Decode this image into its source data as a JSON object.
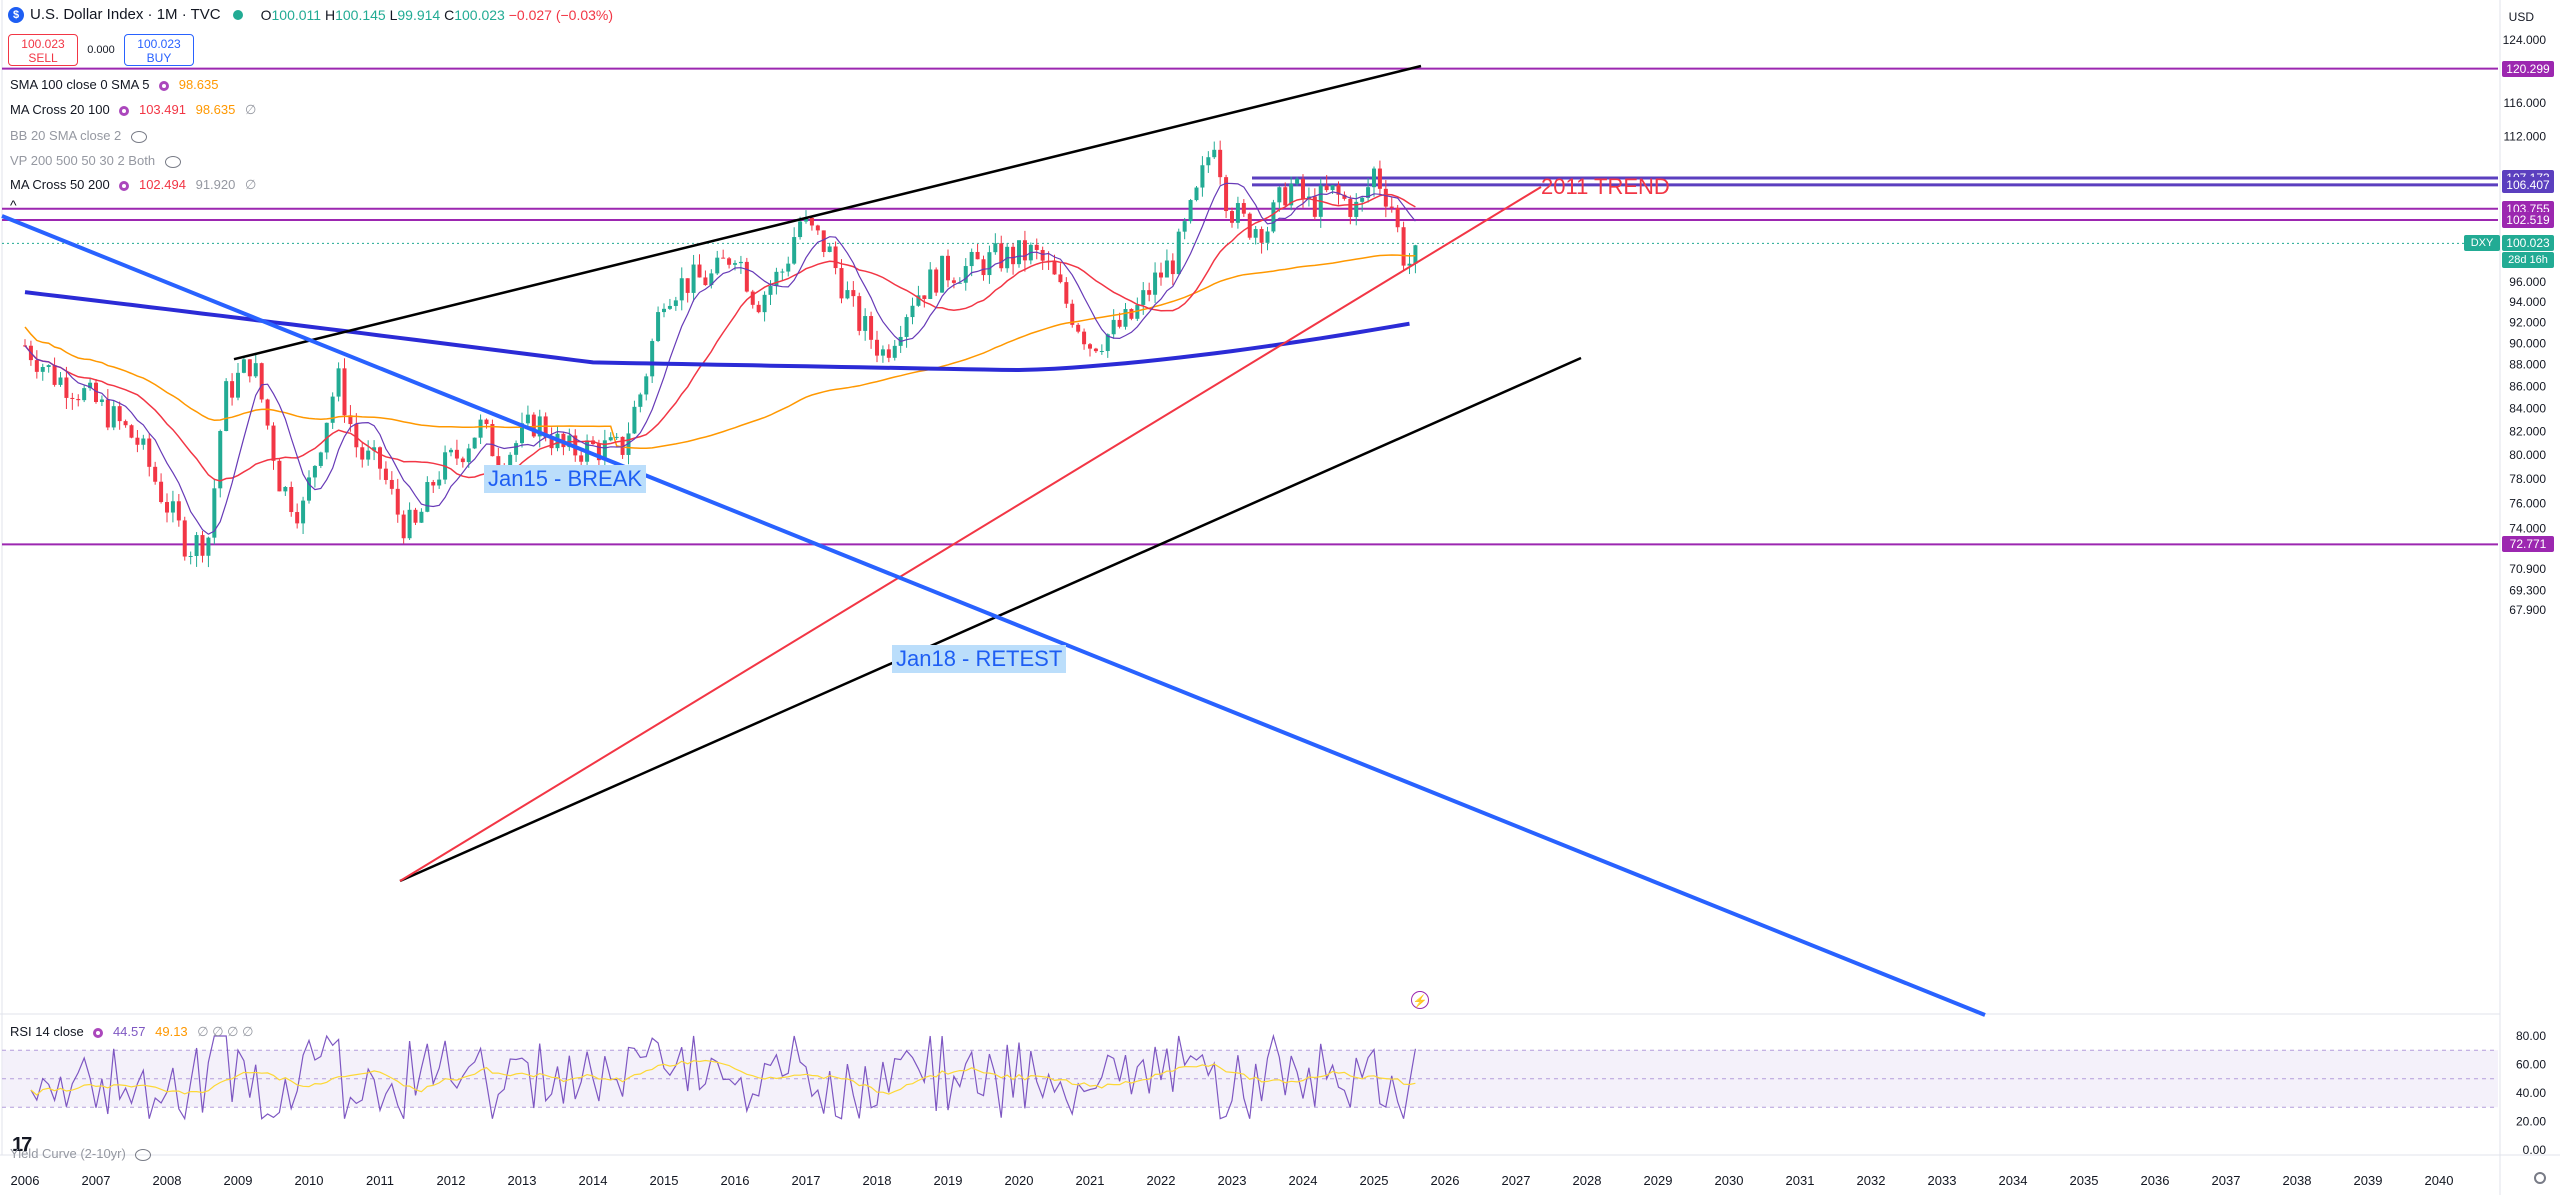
{
  "header": {
    "title": "U.S. Dollar Index · 1M · TVC",
    "open_label": "O",
    "open": "100.011",
    "high_label": "H",
    "high": "100.145",
    "low_label": "L",
    "low": "99.914",
    "close_label": "C",
    "close": "100.023",
    "change": "−0.027 (−0.03%)",
    "currency": "USD"
  },
  "trade": {
    "sell_price": "100.023",
    "sell_label": "SELL",
    "spread": "0.000",
    "buy_price": "100.023",
    "buy_label": "BUY"
  },
  "indicators": [
    {
      "name": "SMA 100 close 0 SMA 5",
      "v1": "",
      "v2": "98.635",
      "v3": ""
    },
    {
      "name": "MA Cross 20 100",
      "v1": "103.491",
      "v2": "98.635",
      "v3": "∅"
    },
    {
      "name": "BB 20 SMA close 2",
      "v1": "",
      "v2": "",
      "v3": ""
    },
    {
      "name": "VP 200 500 50 30 2 Both",
      "v1": "",
      "v2": "",
      "v3": ""
    },
    {
      "name": "MA Cross 50 200",
      "v1": "102.494",
      "v2": "91.920",
      "v3": "∅"
    }
  ],
  "rsi": {
    "name": "RSI 14 close",
    "v1": "44.57",
    "v2": "49.13",
    "v3": "∅ ∅ ∅ ∅"
  },
  "yield_curve": "Yield Curve (2-10yr)",
  "annotations": {
    "trend": "2011 TREND",
    "break": "Jan15 - BREAK",
    "retest": "Jan18 - RETEST"
  },
  "price_axis": [
    "124.000",
    "120.000",
    "116.000",
    "112.000",
    "100.000",
    "96.000",
    "94.000",
    "92.000",
    "90.000",
    "88.000",
    "86.000",
    "84.000",
    "82.000",
    "80.000",
    "78.000",
    "76.000",
    "74.000",
    "70.900",
    "69.300",
    "67.900"
  ],
  "rsi_axis": [
    "80.00",
    "60.00",
    "40.00",
    "20.00",
    "0.00"
  ],
  "price_tags": [
    {
      "value": "120.299",
      "color": "#9c27b0"
    },
    {
      "value": "107.173",
      "color": "#5b3fbf"
    },
    {
      "value": "106.407",
      "color": "#5b3fbf"
    },
    {
      "value": "103.755",
      "color": "#9c27b0"
    },
    {
      "value": "102.519",
      "color": "#9c27b0"
    },
    {
      "value": "100.023",
      "color": "#22ab94"
    },
    {
      "value": "72.771",
      "color": "#9c27b0"
    }
  ],
  "dxy_label": "DXY",
  "countdown": "28d 16h",
  "colors": {
    "up": "#22ab94",
    "down": "#f23645",
    "sma100": "#ff9800",
    "ma20": "#f23645",
    "ma50": "#673ab7",
    "ma200": "#2b2bd6",
    "hline": "#9c27b0",
    "trend_blue": "#2962ff"
  },
  "chart_data": {
    "type": "candlestick",
    "title": "U.S. Dollar Index",
    "x_ticks": [
      "2006",
      "2007",
      "2008",
      "2009",
      "2010",
      "2011",
      "2012",
      "2013",
      "2014",
      "2015",
      "2016",
      "2017",
      "2018",
      "2019",
      "2020",
      "2021",
      "2022",
      "2023",
      "2024",
      "2025",
      "2026",
      "2027",
      "2028",
      "2029",
      "2030",
      "2031",
      "2032",
      "2033",
      "2034",
      "2035",
      "2036",
      "2037",
      "2038",
      "2039",
      "2040"
    ],
    "scale": "log",
    "ylim": [
      67.9,
      124.0
    ],
    "close_path": [
      [
        2006.0,
        89.8
      ],
      [
        2006.4,
        87.0
      ],
      [
        2006.8,
        85.5
      ],
      [
        2007.2,
        83.4
      ],
      [
        2007.6,
        81.0
      ],
      [
        2007.9,
        77.0
      ],
      [
        2008.3,
        72.5
      ],
      [
        2008.6,
        73.5
      ],
      [
        2008.8,
        85.0
      ],
      [
        2009.2,
        88.5
      ],
      [
        2009.6,
        77.5
      ],
      [
        2009.9,
        75.2
      ],
      [
        2010.4,
        86.8
      ],
      [
        2010.7,
        80.0
      ],
      [
        2011.0,
        79.0
      ],
      [
        2011.3,
        74.5
      ],
      [
        2011.5,
        74.0
      ],
      [
        2011.8,
        78.5
      ],
      [
        2012.1,
        80.0
      ],
      [
        2012.4,
        82.5
      ],
      [
        2012.7,
        79.5
      ],
      [
        2013.2,
        83.0
      ],
      [
        2013.6,
        80.3
      ],
      [
        2014.0,
        80.6
      ],
      [
        2014.4,
        80.4
      ],
      [
        2014.7,
        86.0
      ],
      [
        2015.0,
        95.0
      ],
      [
        2015.3,
        96.0
      ],
      [
        2015.7,
        96.5
      ],
      [
        2016.0,
        99.5
      ],
      [
        2016.3,
        94.0
      ],
      [
        2016.7,
        97.5
      ],
      [
        2016.9,
        102.5
      ],
      [
        2017.3,
        99.5
      ],
      [
        2017.7,
        92.5
      ],
      [
        2018.1,
        89.0
      ],
      [
        2018.5,
        94.5
      ],
      [
        2018.9,
        97.0
      ],
      [
        2019.3,
        97.5
      ],
      [
        2019.7,
        98.5
      ],
      [
        2020.2,
        99.0
      ],
      [
        2020.4,
        97.5
      ],
      [
        2020.7,
        93.5
      ],
      [
        2021.0,
        90.0
      ],
      [
        2021.3,
        91.0
      ],
      [
        2021.6,
        92.5
      ],
      [
        2021.9,
        96.0
      ],
      [
        2022.2,
        98.5
      ],
      [
        2022.5,
        105.0
      ],
      [
        2022.75,
        112.0
      ],
      [
        2022.95,
        104.0
      ],
      [
        2023.2,
        102.0
      ],
      [
        2023.5,
        101.8
      ],
      [
        2023.8,
        106.5
      ],
      [
        2024.1,
        104.0
      ],
      [
        2024.4,
        105.5
      ],
      [
        2024.8,
        103.5
      ],
      [
        2025.0,
        108.0
      ],
      [
        2025.25,
        104.2
      ],
      [
        2025.4,
        99.0
      ],
      [
        2025.55,
        97.5
      ],
      [
        2025.65,
        100.02
      ]
    ],
    "horizontal_levels": [
      120.299,
      107.173,
      106.407,
      103.755,
      102.519,
      72.771
    ],
    "last_price": 100.023,
    "rsi_range": [
      0,
      100
    ]
  }
}
